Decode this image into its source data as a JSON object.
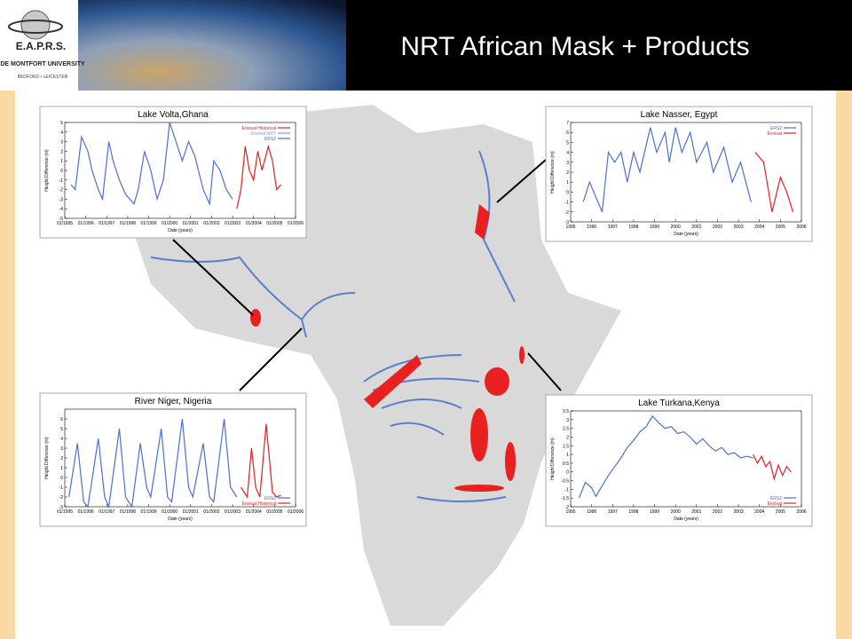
{
  "header": {
    "title": "NRT African Mask + Products",
    "logo_text": "E.A.P.R.S.",
    "university": "DE MONTFORT UNIVERSITY",
    "university_sub": "BEDFORD • LEICESTER"
  },
  "insets": [
    {
      "title": "Lake Volta,Ghana",
      "x_label": "Date (years)",
      "y_label": "Height Difference (m)",
      "legend_corner": "top-right",
      "xlim": [
        1995,
        2006
      ],
      "ylim": [
        -5,
        5
      ],
      "xticks": [
        {
          "value": 1995,
          "label": "01/1995"
        },
        {
          "value": 1996,
          "label": "01/1996"
        },
        {
          "value": 1997,
          "label": "01/1997"
        },
        {
          "value": 1998,
          "label": "01/1998"
        },
        {
          "value": 1999,
          "label": "01/1999"
        },
        {
          "value": 2000,
          "label": "01/2000"
        },
        {
          "value": 2001,
          "label": "01/2001"
        },
        {
          "value": 2002,
          "label": "01/2002"
        },
        {
          "value": 2003,
          "label": "01/2003"
        },
        {
          "value": 2004,
          "label": "01/2004"
        },
        {
          "value": 2005,
          "label": "01/2005"
        },
        {
          "value": 2006,
          "label": "01/2006"
        }
      ],
      "yticks": [
        -5,
        -4,
        -3,
        -2,
        -1,
        0,
        1,
        2,
        3,
        4,
        5
      ],
      "series": [
        {
          "name": "Envisat Historical",
          "color": "#e02020",
          "x": [
            2003.2,
            2003.4,
            2003.6,
            2003.8,
            2004.0,
            2004.2,
            2004.4,
            2004.7,
            2004.9,
            2005.1,
            2005.3
          ],
          "values": [
            -4,
            -2,
            2.5,
            0,
            -1,
            2,
            0,
            2.5,
            1,
            -2,
            -1.5
          ]
        },
        {
          "name": "Envisat NRT",
          "color": "#7aa0e8",
          "x": [],
          "values": []
        },
        {
          "name": "ERS2",
          "color": "#4a6fd6",
          "x": [
            1995.3,
            1995.5,
            1995.8,
            1996.1,
            1996.3,
            1996.6,
            1996.8,
            1997.1,
            1997.3,
            1997.6,
            1997.9,
            1998.3,
            1998.5,
            1998.8,
            1999.1,
            1999.4,
            1999.7,
            2000.0,
            2000.3,
            2000.6,
            2000.9,
            2001.2,
            2001.6,
            2001.9,
            2002.1,
            2002.4,
            2002.7,
            2003.0
          ],
          "values": [
            -1.5,
            -2,
            3.5,
            2,
            0,
            -2,
            -3,
            3,
            1,
            -1,
            -2.5,
            -3.5,
            -2,
            2,
            0,
            -3,
            -1,
            5,
            3,
            1,
            3,
            1.5,
            -2,
            -3.5,
            1,
            0,
            -2,
            -3
          ]
        }
      ]
    },
    {
      "title": "Lake Nasser, Egypt",
      "x_label": "Date (years)",
      "y_label": "Height Difference (m)",
      "legend_corner": "top-right",
      "xlim": [
        1995,
        2006
      ],
      "ylim": [
        -3,
        7
      ],
      "xticks": [
        1995,
        1996,
        1997,
        1998,
        1999,
        2000,
        2001,
        2002,
        2003,
        2004,
        2005,
        2006
      ],
      "yticks": [
        -3,
        -2,
        -1,
        0,
        1,
        2,
        3,
        4,
        5,
        6,
        7
      ],
      "series": [
        {
          "name": "ERS2",
          "color": "#4a6fd6",
          "x": [
            1995.6,
            1995.9,
            1996.1,
            1996.5,
            1996.8,
            1997.1,
            1997.4,
            1997.7,
            1998.0,
            1998.3,
            1998.8,
            1999.1,
            1999.5,
            1999.7,
            2000.0,
            2000.3,
            2000.7,
            2001.0,
            2001.5,
            2001.8,
            2002.3,
            2002.7,
            2003.1,
            2003.6
          ],
          "values": [
            -1,
            1,
            0,
            -2,
            4,
            3,
            4,
            1,
            4,
            2,
            6.5,
            4,
            6,
            3,
            6.5,
            4,
            6,
            3,
            5,
            2,
            4.5,
            1,
            3,
            -1
          ]
        },
        {
          "name": "Envisat",
          "color": "#e02020",
          "x": [
            2003.8,
            2004.2,
            2004.6,
            2005.0,
            2005.3,
            2005.6
          ],
          "values": [
            4,
            3,
            -2,
            1.5,
            0,
            -2
          ]
        }
      ]
    },
    {
      "title": "River Niger, Nigeria",
      "x_label": "Date (years)",
      "y_label": "Height Difference (m)",
      "legend_corner": "bottom-right",
      "xlim": [
        1995,
        2006
      ],
      "ylim": [
        -3,
        7
      ],
      "xticks": [
        {
          "value": 1995,
          "label": "01/1995"
        },
        {
          "value": 1996,
          "label": "01/1996"
        },
        {
          "value": 1997,
          "label": "01/1997"
        },
        {
          "value": 1998,
          "label": "01/1998"
        },
        {
          "value": 1999,
          "label": "01/1999"
        },
        {
          "value": 2000,
          "label": "01/2000"
        },
        {
          "value": 2001,
          "label": "01/2001"
        },
        {
          "value": 2002,
          "label": "01/2002"
        },
        {
          "value": 2003,
          "label": "01/2003"
        },
        {
          "value": 2004,
          "label": "01/2004"
        },
        {
          "value": 2005,
          "label": "01/2005"
        },
        {
          "value": 2006,
          "label": "01/2006"
        }
      ],
      "yticks": [
        -3,
        -2,
        -1,
        0,
        1,
        2,
        3,
        4,
        5,
        6
      ],
      "series": [
        {
          "name": "ERS2",
          "color": "#4a6fd6",
          "x": [
            1995.2,
            1995.6,
            1995.9,
            1996.1,
            1996.6,
            1996.9,
            1997.1,
            1997.6,
            1997.9,
            1998.2,
            1998.6,
            1998.9,
            1999.1,
            1999.6,
            1999.9,
            2000.1,
            2000.6,
            2000.9,
            2001.1,
            2001.6,
            2001.9,
            2002.1,
            2002.6,
            2002.9,
            2003.2
          ],
          "values": [
            -2,
            3.5,
            -2.5,
            -3,
            4,
            -2,
            -3,
            5,
            -2,
            -3,
            3.5,
            -1,
            -2,
            5,
            -2,
            -2.5,
            6,
            -1,
            -2,
            3.5,
            -2,
            -2.5,
            6,
            -1,
            -2
          ]
        },
        {
          "name": "Envisat Historical",
          "color": "#e02020",
          "x": [
            2003.4,
            2003.7,
            2003.9,
            2004.1,
            2004.3,
            2004.6,
            2004.9,
            2005.1,
            2005.3
          ],
          "values": [
            -1,
            -2,
            3,
            -1,
            -2,
            5.5,
            -1.5,
            -2,
            -1.8
          ]
        }
      ]
    },
    {
      "title": "Lake Turkana,Kenya",
      "x_label": "Date (years)",
      "y_label": "Height Difference (m)",
      "legend_corner": "bottom-right",
      "xlim": [
        1995,
        2006
      ],
      "ylim": [
        -2,
        3.5
      ],
      "xticks": [
        1995,
        1996,
        1997,
        1998,
        1999,
        2000,
        2001,
        2002,
        2003,
        2004,
        2005,
        2006
      ],
      "yticks": [
        -2,
        -1.5,
        -1,
        -0.5,
        0,
        0.5,
        1,
        1.5,
        2,
        2.5,
        3,
        3.5
      ],
      "series": [
        {
          "name": "ERS2",
          "color": "#4a6fd6",
          "x": [
            1995.4,
            1995.7,
            1996.0,
            1996.2,
            1996.5,
            1996.8,
            1997.1,
            1997.4,
            1997.7,
            1998.0,
            1998.3,
            1998.6,
            1998.9,
            1999.2,
            1999.5,
            1999.8,
            2000.1,
            2000.4,
            2000.7,
            2001.0,
            2001.3,
            2001.6,
            2001.9,
            2002.2,
            2002.5,
            2002.8,
            2003.1,
            2003.4,
            2003.7
          ],
          "values": [
            -1.5,
            -0.6,
            -0.9,
            -1.4,
            -0.8,
            -0.2,
            0.3,
            0.8,
            1.4,
            1.8,
            2.3,
            2.6,
            3.2,
            2.8,
            2.5,
            2.6,
            2.2,
            2.3,
            2.0,
            1.6,
            1.9,
            1.5,
            1.2,
            1.4,
            1.0,
            1.1,
            0.8,
            0.9,
            0.8
          ]
        },
        {
          "name": "Envisat",
          "color": "#e02020",
          "x": [
            2003.7,
            2003.9,
            2004.1,
            2004.3,
            2004.5,
            2004.7,
            2004.9,
            2005.1,
            2005.3,
            2005.5
          ],
          "values": [
            1.0,
            0.5,
            0.9,
            0.3,
            0.6,
            -0.4,
            0.4,
            -0.2,
            0.3,
            0.0
          ]
        }
      ]
    }
  ]
}
